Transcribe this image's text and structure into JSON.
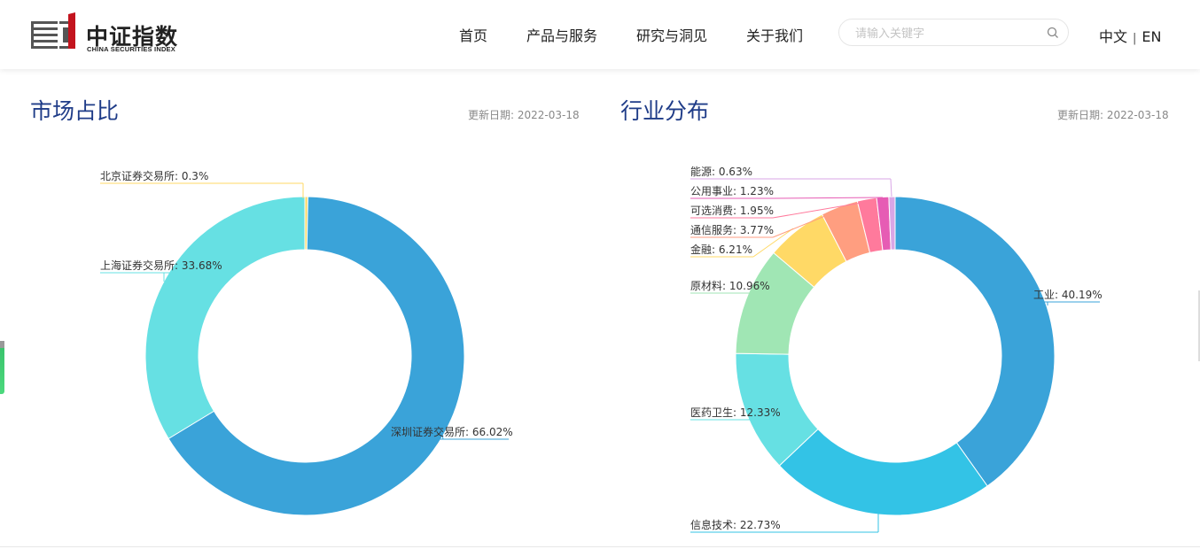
{
  "header": {
    "logo_cn": "中证指数",
    "logo_en": "CHINA SECURITIES INDEX",
    "nav": [
      "首页",
      "产品与服务",
      "研究与洞见",
      "关于我们"
    ],
    "search_placeholder": "请输入关键字",
    "lang_cn": "中文",
    "lang_sep": "|",
    "lang_en": "EN"
  },
  "left": {
    "title": "市场占比",
    "update": "更新日期:  2022-03-18"
  },
  "right": {
    "title": "行业分布",
    "update": "更新日期:  2022-03-18"
  },
  "colors": {
    "brand_red": "#c3141e",
    "title_blue": "#1f3c88"
  },
  "chart_data": [
    {
      "type": "pie",
      "donut": true,
      "title": "市场占比",
      "slices": [
        {
          "name": "北京证券交易所",
          "value": 0.3,
          "label": "北京证券交易所: 0.3%",
          "color": "#ffd966"
        },
        {
          "name": "深圳证券交易所",
          "value": 66.02,
          "label": "深圳证券交易所: 66.02%",
          "color": "#3aa3d9"
        },
        {
          "name": "上海证券交易所",
          "value": 33.68,
          "label": "上海证券交易所: 33.68%",
          "color": "#66e0e3"
        }
      ],
      "order_clockwise_from_top": [
        "北京证券交易所",
        "深圳证券交易所",
        "上海证券交易所"
      ]
    },
    {
      "type": "pie",
      "donut": true,
      "title": "行业分布",
      "slices": [
        {
          "name": "工业",
          "value": 40.19,
          "label": "工业: 40.19%",
          "color": "#3aa3d9"
        },
        {
          "name": "信息技术",
          "value": 22.73,
          "label": "信息技术: 22.73%",
          "color": "#33c3e6"
        },
        {
          "name": "医药卫生",
          "value": 12.33,
          "label": "医药卫生: 12.33%",
          "color": "#66e0e3"
        },
        {
          "name": "原材料",
          "value": 10.96,
          "label": "原材料: 10.96%",
          "color": "#a0e6b4"
        },
        {
          "name": "金融",
          "value": 6.21,
          "label": "金融: 6.21%",
          "color": "#ffd966"
        },
        {
          "name": "通信服务",
          "value": 3.77,
          "label": "通信服务: 3.77%",
          "color": "#ff9e80"
        },
        {
          "name": "可选消费",
          "value": 1.95,
          "label": "可选消费: 1.95%",
          "color": "#ff7a9c"
        },
        {
          "name": "公用事业",
          "value": 1.23,
          "label": "公用事业: 1.23%",
          "color": "#e65cb4"
        },
        {
          "name": "能源",
          "value": 0.63,
          "label": "能源: 0.63%",
          "color": "#d9a6e6"
        }
      ]
    }
  ]
}
